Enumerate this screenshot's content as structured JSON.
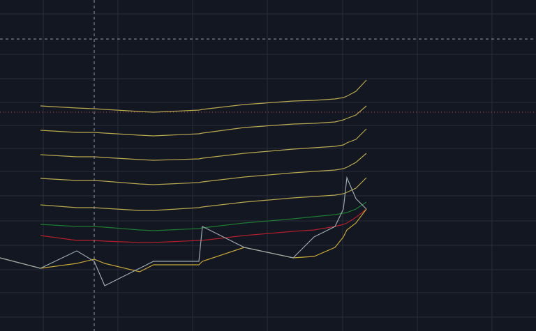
{
  "chart_data": {
    "type": "line",
    "x": [
      0,
      58,
      110,
      135,
      150,
      200,
      220,
      285,
      290,
      350,
      420,
      450,
      480,
      492,
      497,
      510,
      525
    ],
    "xlim": [
      0,
      768
    ],
    "ylim": [
      0,
      475
    ],
    "xticks": [
      62,
      169,
      276,
      383,
      491,
      598,
      705
    ],
    "yticks": [
      20,
      55,
      88,
      123,
      158,
      194,
      229,
      262,
      295,
      328,
      362,
      397,
      455
    ],
    "grid": true,
    "series": [
      {
        "color": "#b8a850",
        "values": [
          null,
          323,
          320,
          319,
          318,
          315,
          314,
          317,
          318,
          325,
          330,
          331,
          333,
          335,
          337,
          344,
          360
        ]
      },
      {
        "color": "#b8a850",
        "values": [
          null,
          288,
          285,
          285,
          284,
          281,
          280,
          283,
          284,
          292,
          297,
          298,
          300,
          303,
          305,
          310,
          323
        ]
      },
      {
        "color": "#b8a850",
        "values": [
          null,
          253,
          250,
          250,
          249,
          246,
          245,
          247,
          248,
          255,
          261,
          263,
          265,
          267,
          270,
          275,
          290
        ]
      },
      {
        "color": "#b8a850",
        "values": [
          null,
          219,
          216,
          216,
          215,
          211,
          210,
          213,
          214,
          221,
          227,
          229,
          231,
          233,
          235,
          242,
          255
        ]
      },
      {
        "color": "#b8a850",
        "values": [
          null,
          181,
          177,
          177,
          176,
          173,
          173,
          177,
          178,
          185,
          191,
          193,
          195,
          197,
          199,
          205,
          220
        ]
      },
      {
        "color": "#1f7a32",
        "values": [
          null,
          153,
          150,
          150,
          149,
          145,
          144,
          147,
          148,
          155,
          161,
          164,
          167,
          169,
          170,
          175,
          185
        ]
      },
      {
        "color": "#b0202c",
        "values": [
          null,
          137,
          130,
          130,
          129,
          127,
          127,
          130,
          130,
          137,
          143,
          145,
          150,
          153,
          155,
          163,
          175
        ]
      },
      {
        "color": "#c8a83a",
        "values": [
          105,
          90,
          97,
          103,
          97,
          85,
          95,
          95,
          100,
          120,
          105,
          107,
          120,
          135,
          145,
          155,
          175
        ]
      },
      {
        "color": "#9aa8ad",
        "values": [
          105,
          90,
          115,
          100,
          65,
          90,
          100,
          100,
          150,
          120,
          105,
          135,
          150,
          175,
          220,
          190,
          175
        ]
      }
    ]
  }
}
